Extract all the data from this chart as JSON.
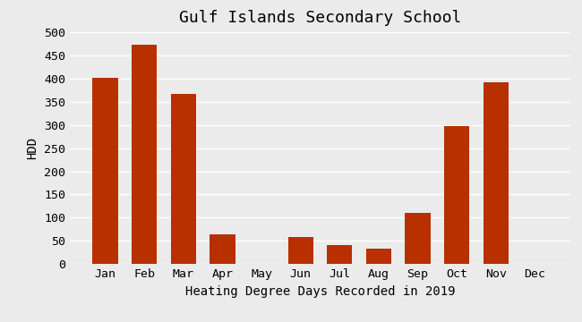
{
  "title": "Gulf Islands Secondary School",
  "xlabel": "Heating Degree Days Recorded in 2019",
  "ylabel": "HDD",
  "categories": [
    "Jan",
    "Feb",
    "Mar",
    "Apr",
    "May",
    "Jun",
    "Jul",
    "Aug",
    "Sep",
    "Oct",
    "Nov",
    "Dec"
  ],
  "values": [
    401,
    473,
    367,
    65,
    0,
    59,
    40,
    33,
    111,
    298,
    392,
    0
  ],
  "bar_color": "#b83000",
  "background_color": "#ebebeb",
  "plot_bg_color": "#ebebeb",
  "ylim": [
    0,
    500
  ],
  "yticks": [
    0,
    50,
    100,
    150,
    200,
    250,
    300,
    350,
    400,
    450,
    500
  ],
  "grid_color": "#ffffff",
  "title_fontsize": 13,
  "label_fontsize": 10,
  "tick_fontsize": 9.5
}
